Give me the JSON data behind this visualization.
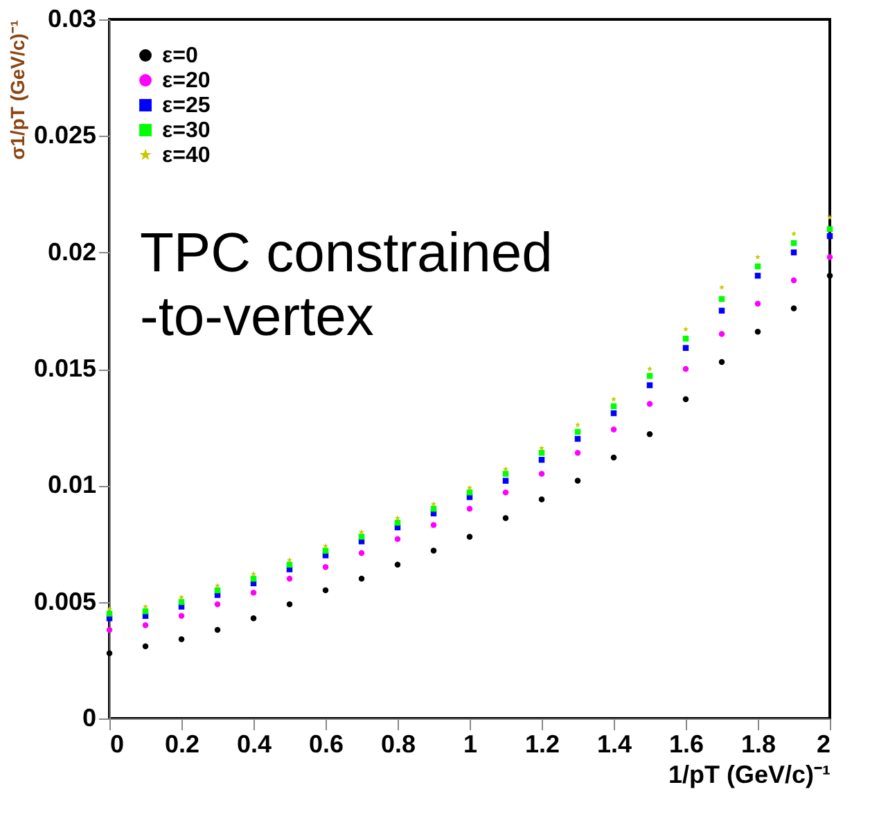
{
  "chart_data": {
    "type": "scatter",
    "xlabel": "1/pT (GeV/c)⁻¹",
    "ylabel": "σ1/pT (GeV/c)⁻¹",
    "x": [
      0,
      0.1,
      0.2,
      0.3,
      0.4,
      0.5,
      0.6,
      0.7,
      0.8,
      0.9,
      1.0,
      1.1,
      1.2,
      1.3,
      1.4,
      1.5,
      1.6,
      1.7,
      1.8,
      1.9,
      2.0
    ],
    "series": [
      {
        "name": "ε=0",
        "color": "#000000",
        "marker": "circle",
        "values": [
          0.0028,
          0.0031,
          0.0034,
          0.0038,
          0.0043,
          0.0049,
          0.0055,
          0.006,
          0.0066,
          0.0072,
          0.0078,
          0.0086,
          0.0094,
          0.0102,
          0.0112,
          0.0122,
          0.0137,
          0.0153,
          0.0166,
          0.0176,
          0.019
        ]
      },
      {
        "name": "ε=20",
        "color": "#ff00ff",
        "marker": "circle",
        "values": [
          0.0038,
          0.004,
          0.0044,
          0.0049,
          0.0054,
          0.006,
          0.0065,
          0.0071,
          0.0077,
          0.0083,
          0.009,
          0.0097,
          0.0105,
          0.0114,
          0.0124,
          0.0135,
          0.015,
          0.0165,
          0.0178,
          0.0188,
          0.0198
        ]
      },
      {
        "name": "ε=25",
        "color": "#0000ff",
        "marker": "square",
        "values": [
          0.0043,
          0.0044,
          0.0048,
          0.0053,
          0.0058,
          0.0064,
          0.007,
          0.0076,
          0.0082,
          0.0088,
          0.0095,
          0.0102,
          0.0111,
          0.012,
          0.0131,
          0.0143,
          0.0159,
          0.0175,
          0.019,
          0.02,
          0.0207
        ]
      },
      {
        "name": "ε=30",
        "color": "#00ff00",
        "marker": "square",
        "values": [
          0.0045,
          0.0046,
          0.005,
          0.0055,
          0.006,
          0.0066,
          0.0072,
          0.0078,
          0.0084,
          0.009,
          0.0097,
          0.0105,
          0.0114,
          0.0123,
          0.0134,
          0.0147,
          0.0163,
          0.018,
          0.0194,
          0.0204,
          0.021
        ]
      },
      {
        "name": "ε=40",
        "color": "#c8c800",
        "marker": "star",
        "values": [
          0.0047,
          0.0048,
          0.0052,
          0.0057,
          0.0062,
          0.0068,
          0.0074,
          0.008,
          0.0086,
          0.0092,
          0.0099,
          0.0107,
          0.0116,
          0.0126,
          0.0137,
          0.015,
          0.0167,
          0.0185,
          0.0198,
          0.0208,
          0.0215
        ]
      }
    ],
    "annotations": [
      "TPC constrained\n-to-vertex"
    ],
    "xlim": [
      0,
      2
    ],
    "xticks": [
      0,
      0.2,
      0.4,
      0.6,
      0.8,
      1,
      1.2,
      1.4,
      1.6,
      1.8,
      2
    ],
    "ylim": [
      0,
      0.03
    ],
    "yticks": [
      0,
      0.005,
      0.01,
      0.015,
      0.02,
      0.025,
      0.03
    ],
    "legend": "top left",
    "grid": false
  }
}
